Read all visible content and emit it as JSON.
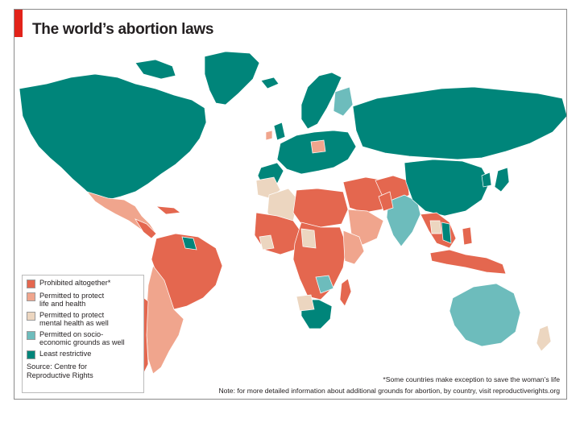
{
  "title": "The world’s abortion laws",
  "colors": {
    "prohibited": "#e4674f",
    "life_health": "#f0a58d",
    "mental": "#ecd6c0",
    "socio": "#6dbcbc",
    "least": "#00857a",
    "ocean": "#ffffff",
    "accent": "#e2231a"
  },
  "legend": {
    "items": [
      {
        "key": "prohibited",
        "label": "Prohibited altogether*"
      },
      {
        "key": "life_health",
        "label": "Permitted to protect\nlife and health"
      },
      {
        "key": "mental",
        "label": "Permitted to protect\nmental health as well"
      },
      {
        "key": "socio",
        "label": "Permitted on socio-\neconomic grounds as well"
      },
      {
        "key": "least",
        "label": "Least restrictive"
      }
    ],
    "source": "Source: Centre for\nReproductive Rights"
  },
  "footnotes": {
    "exception": "*Some countries make exception to save the woman’s life",
    "note": "Note: for more detailed information about  additional grounds for abortion, by country, visit reproductiverights.org"
  }
}
